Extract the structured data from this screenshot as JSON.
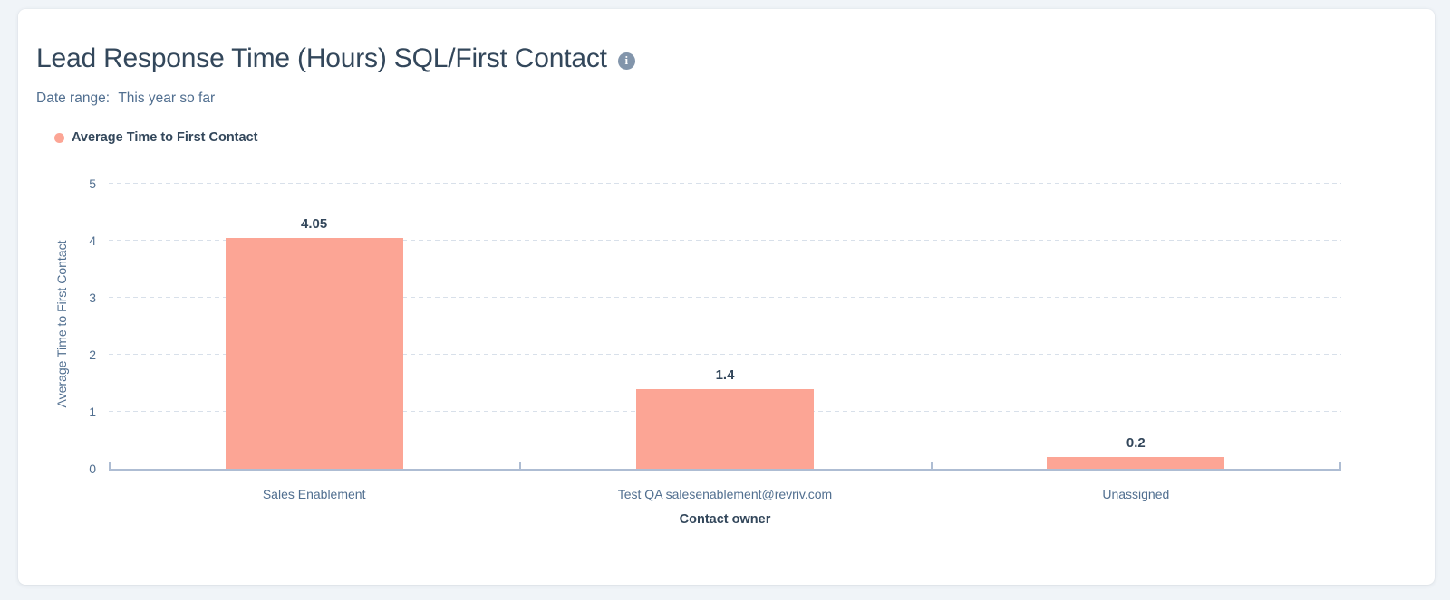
{
  "page": {
    "background_color": "#f0f4f8",
    "card_background_color": "#ffffff"
  },
  "header": {
    "title": "Lead Response Time (Hours) SQL/First Contact",
    "info_icon": "info-icon",
    "info_glyph": "i",
    "date_range_label": "Date range:",
    "date_range_value": "This year so far"
  },
  "legend": {
    "position": "top-left",
    "items": [
      {
        "label": "Average Time to First Contact",
        "color": "#fca595"
      }
    ]
  },
  "chart_data": {
    "type": "bar",
    "title": "Lead Response Time (Hours) SQL/First Contact",
    "categories": [
      "Sales Enablement",
      "Test QA salesenablement@revriv.com",
      "Unassigned"
    ],
    "series": [
      {
        "name": "Average Time to First Contact",
        "color": "#fca595",
        "values": [
          4.05,
          1.4,
          0.2
        ],
        "value_labels": [
          "4.05",
          "1.4",
          "0.2"
        ]
      }
    ],
    "xlabel": "Contact owner",
    "ylabel": "Average Time to First Contact",
    "ylim": [
      0,
      5
    ],
    "yticks": [
      0,
      1,
      2,
      3,
      4,
      5
    ],
    "grid": "dashed-horizontal-on",
    "legend_position": "top-left",
    "colors": {
      "bar": "#fca595",
      "gridline": "#d8e0ea",
      "axis_line": "#aebdd3",
      "tick_label": "#516f90",
      "value_label": "#33475b"
    }
  }
}
